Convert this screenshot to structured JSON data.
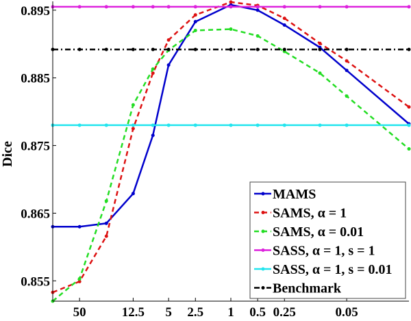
{
  "chart_data": {
    "type": "line",
    "title": "",
    "xlabel": "",
    "ylabel": "Dice",
    "x_scale": "log",
    "x_reversed": true,
    "x": [
      100,
      50,
      25,
      12.5,
      7.5,
      5,
      2.5,
      1,
      0.5,
      0.25,
      0.1,
      0.05,
      0.01
    ],
    "xlim": [
      100,
      0.01
    ],
    "xticks": [
      50,
      12.5,
      5,
      2.5,
      1,
      0.5,
      0.25,
      0.05
    ],
    "xtick_labels": [
      "50",
      "12.5",
      "5",
      "2.5",
      "1",
      "0.5",
      "0.25",
      "0.05"
    ],
    "ylim": [
      0.852,
      0.8961
    ],
    "yticks": [
      0.855,
      0.865,
      0.875,
      0.885,
      0.895
    ],
    "ytick_labels": [
      "0.855",
      "0.865",
      "0.875",
      "0.885",
      "0.895"
    ],
    "grid": false,
    "legend_position": "bottom-right",
    "series": [
      {
        "name": "MAMS",
        "color": "#0000cc",
        "dash": "solid",
        "values": [
          0.863,
          0.863,
          0.8635,
          0.8679,
          0.8765,
          0.8869,
          0.8933,
          0.8958,
          0.895,
          0.8928,
          0.8895,
          0.8861,
          0.8782
        ]
      },
      {
        "name": "SAMS, α = 1",
        "color": "#dd1111",
        "dash": "dashed",
        "values": [
          0.8533,
          0.8549,
          0.8616,
          0.8775,
          0.8857,
          0.8906,
          0.8943,
          0.8962,
          0.8957,
          0.8938,
          0.8901,
          0.8875,
          0.8807
        ]
      },
      {
        "name": "SAMS, α = 0.01",
        "color": "#22dd22",
        "dash": "dashed",
        "values": [
          0.852,
          0.8553,
          0.8668,
          0.881,
          0.8863,
          0.8891,
          0.892,
          0.8922,
          0.8912,
          0.8889,
          0.8857,
          0.8823,
          0.8745
        ]
      },
      {
        "name": "SASS, α = 1, s = 1",
        "color": "#dd22dd",
        "dash": "solid",
        "values": [
          0.8955,
          0.8955,
          0.8955,
          0.8955,
          0.8955,
          0.8955,
          0.8955,
          0.8955,
          0.8955,
          0.8955,
          0.8955,
          0.8955,
          0.8955
        ]
      },
      {
        "name": "SASS, α = 1, s = 0.01",
        "color": "#22e5ee",
        "dash": "solid",
        "values": [
          0.878,
          0.878,
          0.878,
          0.878,
          0.878,
          0.878,
          0.878,
          0.878,
          0.878,
          0.878,
          0.878,
          0.878,
          0.878
        ]
      },
      {
        "name": "Benchmark",
        "color": "#000000",
        "dash": "dashdot",
        "values": [
          0.8892,
          0.8892,
          0.8892,
          0.8892,
          0.8892,
          0.8892,
          0.8892,
          0.8892,
          0.8892,
          0.8892,
          0.8892,
          0.8892,
          0.8892
        ]
      }
    ]
  }
}
